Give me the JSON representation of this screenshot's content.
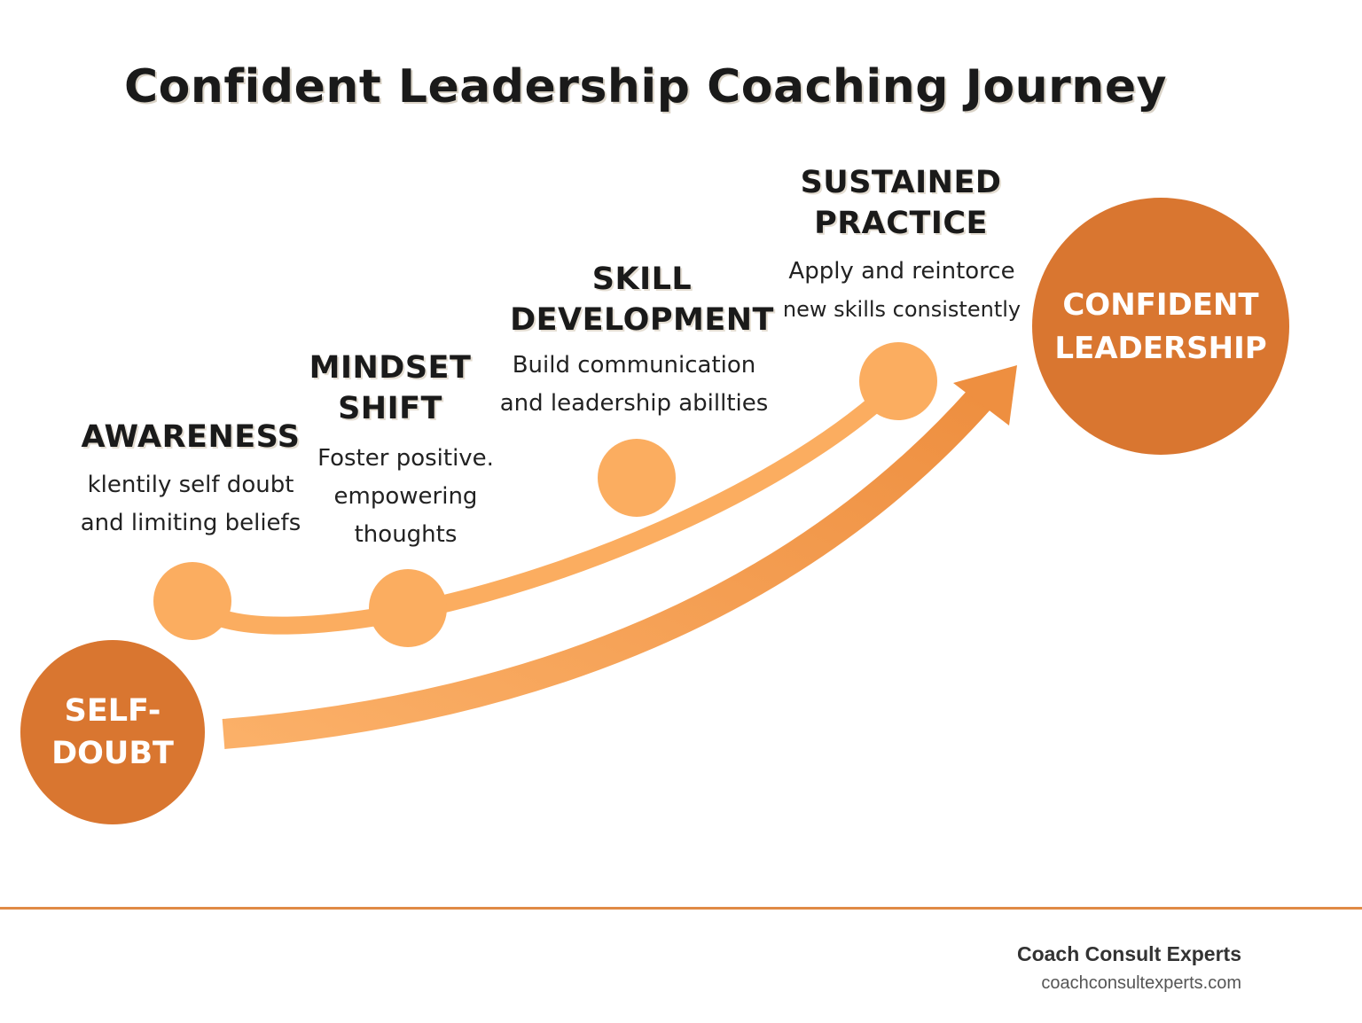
{
  "title": "Confident Leadership Coaching Journey",
  "start": {
    "line1": "SELF-",
    "line2": "DOUBT"
  },
  "end": {
    "line1": "CONFIDENT",
    "line2": "LEADERSHIP"
  },
  "stages": [
    {
      "title_line1": "AWARENESS",
      "title_line2": "",
      "desc_line1": "klentily self doubt",
      "desc_line2": "and limiting beliefs",
      "desc_line3": ""
    },
    {
      "title_line1": "MINDSET",
      "title_line2": "SHIFT",
      "desc_line1": "Foster positive.",
      "desc_line2": "empowering",
      "desc_line3": "thoughts"
    },
    {
      "title_line1": "SKILL",
      "title_line2": "DEVELOPMENT",
      "desc_line1": "Build communication",
      "desc_line2": "and leadership abillties",
      "desc_line3": ""
    },
    {
      "title_line1": "SUSTAINED",
      "title_line2": "PRACTICE",
      "desc_line1": "Apply and reintorce",
      "desc_line2": "new skills consistently",
      "desc_line3": ""
    }
  ],
  "footer": {
    "brand": "Coach Consult Experts",
    "website": "coachconsultexperts.com"
  },
  "colors": {
    "dark_node": "#d97630",
    "light_node": "#fbad60",
    "arrow": "#f19b4e",
    "footer_rule": "#e08a45"
  }
}
